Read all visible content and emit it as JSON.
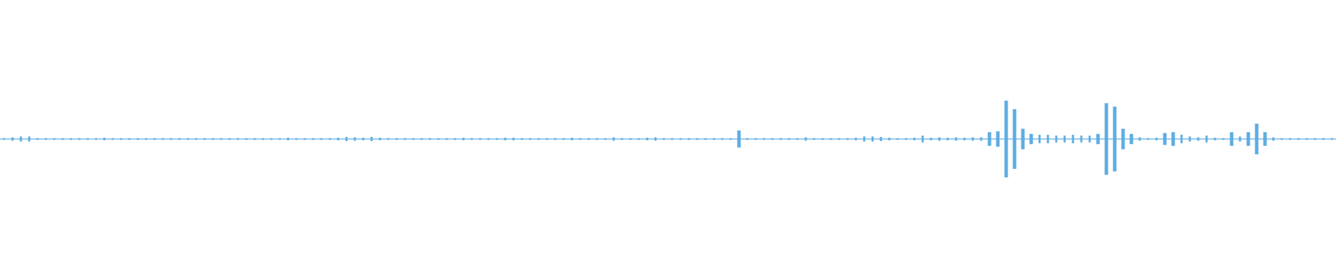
{
  "waveform": {
    "color": "#5dade2",
    "ylim": [
      -163,
      163
    ],
    "peaks": [
      1,
      2,
      3,
      3,
      1,
      1,
      1,
      1,
      1,
      1,
      1,
      1,
      1.5,
      1,
      1,
      1,
      1,
      1,
      1,
      1,
      1,
      1,
      1,
      1,
      1,
      1,
      1,
      1,
      1,
      1,
      1,
      1,
      1,
      1,
      1.5,
      1,
      1,
      1,
      1,
      1,
      1.5,
      2.5,
      2,
      1.5,
      2.5,
      1.5,
      1,
      1,
      1,
      1,
      1,
      1,
      1,
      1,
      1,
      1.5,
      1,
      1,
      1,
      1,
      1.5,
      1.5,
      1,
      1,
      1,
      1,
      1,
      1,
      1.5,
      1,
      1,
      1,
      1,
      2,
      1,
      1,
      1,
      1.5,
      2,
      1,
      1,
      1,
      1,
      1,
      1,
      1,
      1,
      1,
      10,
      1,
      1,
      1,
      1,
      1,
      1,
      1,
      2,
      1,
      1,
      1,
      1,
      1,
      1.5,
      3,
      3,
      2.5,
      1.5,
      1,
      1,
      1.5,
      4,
      1.5,
      2,
      1.5,
      2,
      1.5,
      2,
      2,
      8,
      9,
      45,
      35,
      12,
      6,
      5,
      5,
      4,
      4,
      5,
      4,
      4,
      6,
      42,
      38,
      12,
      6,
      2,
      1,
      1.5,
      7,
      8,
      5,
      3,
      2,
      4,
      1.5,
      1,
      8,
      3,
      8,
      18,
      8,
      2,
      1,
      1,
      1,
      1,
      1,
      1,
      1
    ]
  }
}
